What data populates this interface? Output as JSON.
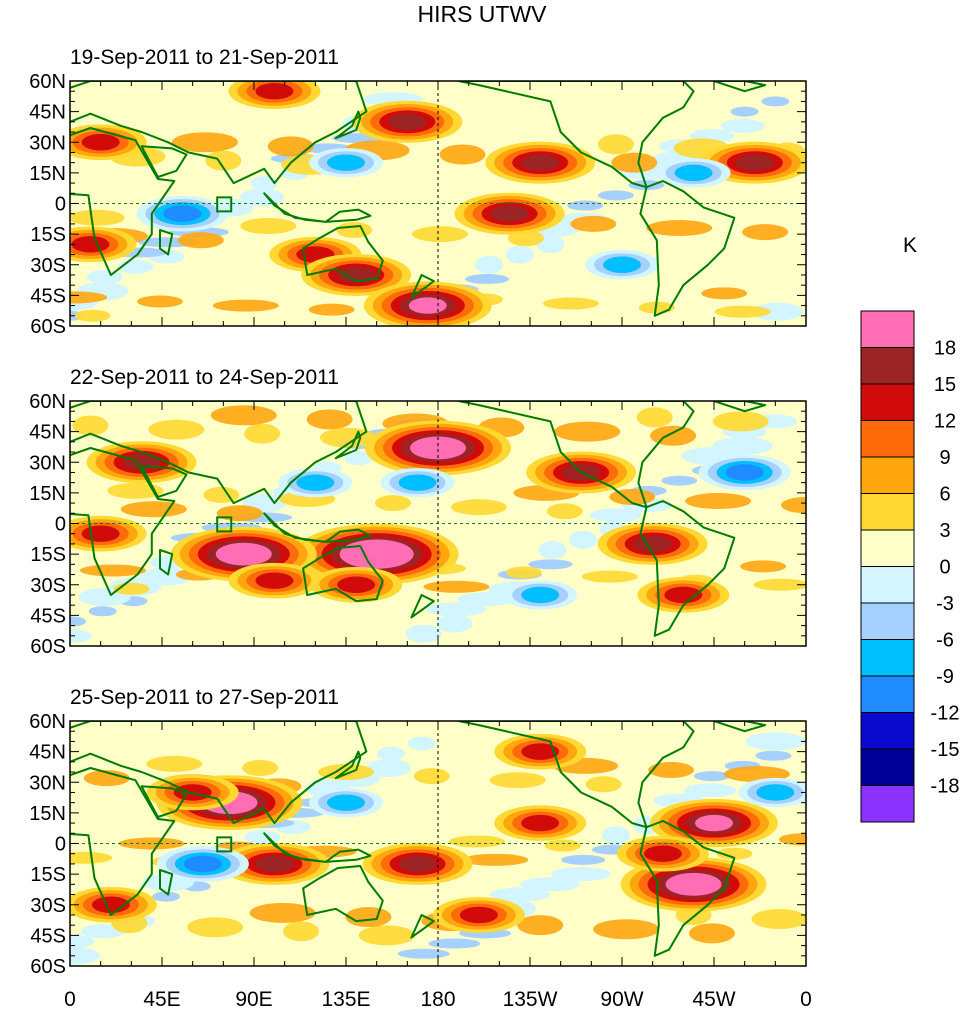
{
  "chart_data": {
    "type": "heatmap",
    "title": "HIRS UTWV",
    "variable": "UTWV",
    "panels": [
      {
        "subtitle": "19-Sep-2011 to 21-Sep-2011",
        "blobs": [
          {
            "lon": 100,
            "lat": 55,
            "level": 4
          },
          {
            "lon": 15,
            "lat": 30,
            "level": 4
          },
          {
            "lon": 165,
            "lat": 40,
            "level": 5
          },
          {
            "lon": 230,
            "lat": 20,
            "level": 5
          },
          {
            "lon": 215,
            "lat": -5,
            "level": 5
          },
          {
            "lon": 120,
            "lat": -25,
            "level": 4
          },
          {
            "lon": 140,
            "lat": -35,
            "level": 5
          },
          {
            "lon": 175,
            "lat": -50,
            "level": 6
          },
          {
            "lon": 10,
            "lat": -20,
            "level": 4
          },
          {
            "lon": 55,
            "lat": -5,
            "level": -4
          },
          {
            "lon": 135,
            "lat": 20,
            "level": -3
          },
          {
            "lon": 270,
            "lat": -30,
            "level": -3
          },
          {
            "lon": 335,
            "lat": 20,
            "level": 5
          },
          {
            "lon": 305,
            "lat": 15,
            "level": -3
          }
        ]
      },
      {
        "subtitle": "22-Sep-2011 to 24-Sep-2011",
        "blobs": [
          {
            "lon": 180,
            "lat": 37,
            "level": 7
          },
          {
            "lon": 35,
            "lat": 30,
            "level": 5
          },
          {
            "lon": 150,
            "lat": -15,
            "level": 8
          },
          {
            "lon": 85,
            "lat": -15,
            "level": 7
          },
          {
            "lon": 100,
            "lat": -28,
            "level": 4
          },
          {
            "lon": 140,
            "lat": -30,
            "level": 4
          },
          {
            "lon": 250,
            "lat": 25,
            "level": 5
          },
          {
            "lon": 285,
            "lat": -10,
            "level": 5
          },
          {
            "lon": 15,
            "lat": -5,
            "level": 4
          },
          {
            "lon": 330,
            "lat": 25,
            "level": -4
          },
          {
            "lon": 170,
            "lat": 20,
            "level": -3
          },
          {
            "lon": 230,
            "lat": -35,
            "level": -3
          },
          {
            "lon": 300,
            "lat": -35,
            "level": 4
          },
          {
            "lon": 120,
            "lat": 20,
            "level": -3
          }
        ]
      },
      {
        "subtitle": "25-Sep-2011 to 27-Sep-2011",
        "blobs": [
          {
            "lon": 78,
            "lat": 20,
            "level": 7
          },
          {
            "lon": 60,
            "lat": 25,
            "level": 4
          },
          {
            "lon": 100,
            "lat": -10,
            "level": 5
          },
          {
            "lon": 170,
            "lat": -10,
            "level": 5
          },
          {
            "lon": 305,
            "lat": -20,
            "level": 7
          },
          {
            "lon": 315,
            "lat": 10,
            "level": 6
          },
          {
            "lon": 230,
            "lat": 10,
            "level": 4
          },
          {
            "lon": 230,
            "lat": 45,
            "level": 4
          },
          {
            "lon": 20,
            "lat": -30,
            "level": 4
          },
          {
            "lon": 65,
            "lat": -10,
            "level": -4
          },
          {
            "lon": 135,
            "lat": 20,
            "level": -3
          },
          {
            "lon": 290,
            "lat": -5,
            "level": 4
          },
          {
            "lon": 200,
            "lat": -35,
            "level": 4
          },
          {
            "lon": 345,
            "lat": 25,
            "level": -3
          }
        ]
      }
    ],
    "x_ticks": [
      "0",
      "45E",
      "90E",
      "135E",
      "180",
      "135W",
      "90W",
      "45W",
      "0"
    ],
    "x_tick_lons": [
      0,
      45,
      90,
      135,
      180,
      225,
      270,
      315,
      360
    ],
    "y_ticks": [
      "60N",
      "45N",
      "30N",
      "15N",
      "0",
      "15S",
      "30S",
      "45S",
      "60S"
    ],
    "y_tick_lats": [
      60,
      45,
      30,
      15,
      0,
      -15,
      -30,
      -45,
      -60
    ],
    "xlim": [
      0,
      360
    ],
    "ylim": [
      -60,
      60
    ],
    "colorbar": {
      "unit": "K",
      "labels": [
        "18",
        "15",
        "12",
        "9",
        "6",
        "3",
        "0",
        "-3",
        "-6",
        "-9",
        "-12",
        "-15",
        "-18"
      ],
      "colors": [
        "#ff6eb4",
        "#9c2424",
        "#d10a0a",
        "#ff6a0a",
        "#ffa60e",
        "#ffd932",
        "#ffffc8",
        "#d2f5ff",
        "#a5d0ff",
        "#00bfff",
        "#1e8cff",
        "#0a0acd",
        "#000096",
        "#8c32ff"
      ]
    },
    "land_color": "#007c00"
  }
}
